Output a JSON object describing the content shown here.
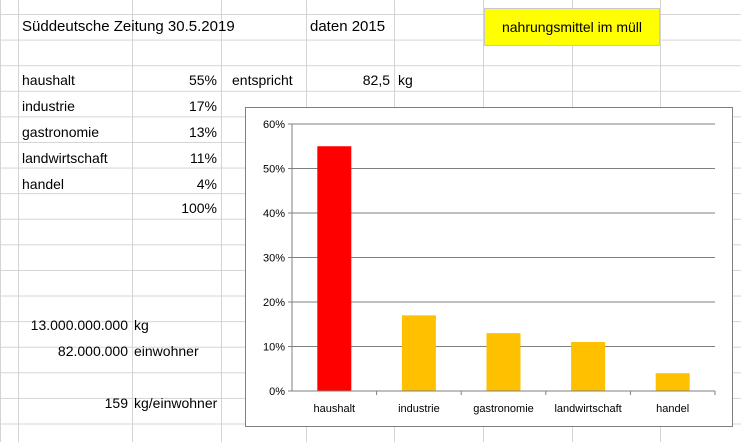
{
  "sheet": {
    "header": {
      "source": "Süddeutsche Zeitung 30.5.2019",
      "data_year": "daten 2015",
      "topic": "nahrungsmittel im müll"
    },
    "rows": [
      {
        "label": "haushalt",
        "pct": "55%"
      },
      {
        "label": "industrie",
        "pct": "17%"
      },
      {
        "label": "gastronomie",
        "pct": "13%"
      },
      {
        "label": "landwirtschaft",
        "pct": "11%"
      },
      {
        "label": "handel",
        "pct": "4%"
      }
    ],
    "total_pct": "100%",
    "equivalent_label": "entspricht",
    "equivalent_value": "82,5",
    "equivalent_unit": "kg",
    "total_kg_value": "13.000.000.000",
    "total_kg_unit": "kg",
    "inhabitants_value": "82.000.000",
    "inhabitants_unit": "einwohner",
    "per_capita_value": "159",
    "per_capita_unit": "kg/einwohner"
  },
  "colors": {
    "highlight": "#ffff00",
    "bar_primary": "#ff0000",
    "bar_secondary": "#ffc000"
  },
  "chart_data": {
    "type": "bar",
    "categories": [
      "haushalt",
      "industrie",
      "gastronomie",
      "landwirtschaft",
      "handel"
    ],
    "values": [
      55,
      17,
      13,
      11,
      4
    ],
    "ylim": [
      0,
      60
    ],
    "yticks": [
      "0%",
      "10%",
      "20%",
      "30%",
      "40%",
      "50%",
      "60%"
    ],
    "grid": true,
    "legend": "none",
    "title": "",
    "xlabel": "",
    "ylabel": ""
  }
}
